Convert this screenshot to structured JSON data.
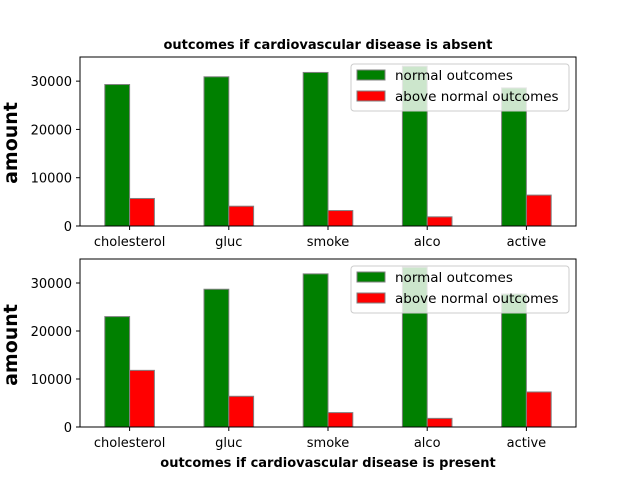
{
  "colors": {
    "normal": "#008000",
    "above": "#ff0000",
    "bar_edge": "#808080"
  },
  "legend": {
    "placement": "upper right",
    "entries": [
      "normal outcomes",
      "above normal outcomes"
    ]
  },
  "chart_data": [
    {
      "type": "bar",
      "title": "outcomes if cardiovascular disease is absent",
      "xlabel": "",
      "ylabel": "amount",
      "categories": [
        "cholesterol",
        "gluc",
        "smoke",
        "alco",
        "active"
      ],
      "series": [
        {
          "name": "normal outcomes",
          "values": [
            29300,
            30900,
            31800,
            33100,
            28600
          ]
        },
        {
          "name": "above normal outcomes",
          "values": [
            5700,
            4100,
            3200,
            1900,
            6400
          ]
        }
      ],
      "ylim": [
        0,
        35000
      ],
      "yticks": [
        0,
        10000,
        20000,
        30000
      ]
    },
    {
      "type": "bar",
      "title": "",
      "xlabel": "outcomes if cardiovascular disease is present",
      "ylabel": "amount",
      "categories": [
        "cholesterol",
        "gluc",
        "smoke",
        "alco",
        "active"
      ],
      "series": [
        {
          "name": "normal outcomes",
          "values": [
            23000,
            28700,
            31900,
            33300,
            27700
          ]
        },
        {
          "name": "above normal outcomes",
          "values": [
            11800,
            6400,
            3000,
            1800,
            7300
          ]
        }
      ],
      "ylim": [
        0,
        35000
      ],
      "yticks": [
        0,
        10000,
        20000,
        30000
      ]
    }
  ]
}
